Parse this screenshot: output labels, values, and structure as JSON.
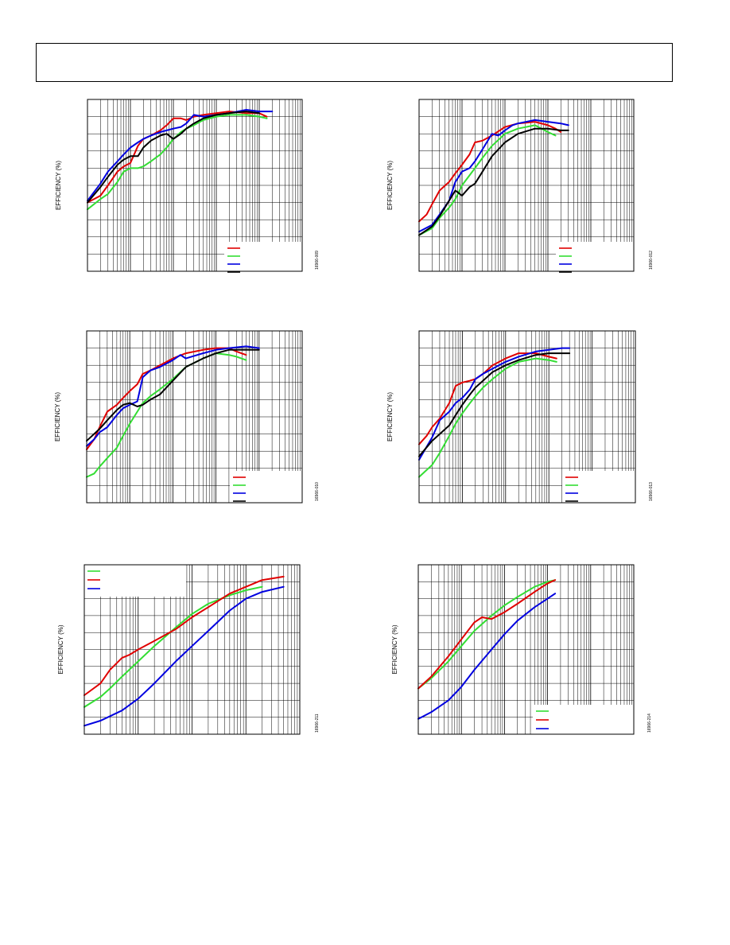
{
  "page": {
    "header_text": ""
  },
  "chart_data": [
    {
      "id": "chart-1",
      "type": "line",
      "ylabel": "EFFICIENCY (%)",
      "figure_id": "16966-009",
      "xscale": "log",
      "xrange": [
        0.0001,
        10
      ],
      "yrange": [
        0,
        100
      ],
      "grid": true,
      "legend_position": "bottom-right",
      "series": [
        {
          "color": "#e00000",
          "x": [
            0.0001,
            0.0002,
            0.0003,
            0.0005,
            0.0007,
            0.001,
            0.0015,
            0.002,
            0.003,
            0.005,
            0.007,
            0.01,
            0.015,
            0.02,
            0.03,
            0.05,
            0.1,
            0.2,
            0.5,
            1,
            1.5
          ],
          "y": [
            40,
            44,
            50,
            58,
            61,
            63,
            73,
            77,
            79,
            82,
            85,
            89,
            89,
            88,
            90,
            91,
            92,
            93,
            92,
            92,
            90
          ]
        },
        {
          "color": "#33dd33",
          "x": [
            0.0001,
            0.0002,
            0.0003,
            0.0005,
            0.0007,
            0.001,
            0.0015,
            0.002,
            0.003,
            0.005,
            0.007,
            0.01,
            0.015,
            0.02,
            0.03,
            0.05,
            0.1,
            0.2,
            0.5,
            1,
            1.5
          ],
          "y": [
            36,
            42,
            45,
            52,
            58,
            60,
            60,
            61,
            64,
            68,
            72,
            77,
            81,
            83,
            85,
            88,
            90,
            91,
            91,
            90,
            89
          ]
        },
        {
          "color": "#0000e0",
          "x": [
            0.0001,
            0.0002,
            0.0003,
            0.0005,
            0.0007,
            0.001,
            0.0015,
            0.002,
            0.003,
            0.005,
            0.007,
            0.01,
            0.015,
            0.02,
            0.03,
            0.05,
            0.1,
            0.2,
            0.5,
            1,
            2
          ],
          "y": [
            41,
            51,
            58,
            64,
            68,
            72,
            75,
            77,
            79,
            81,
            82,
            83,
            84,
            86,
            91,
            90,
            91,
            92,
            94,
            93,
            93
          ]
        },
        {
          "color": "#000000",
          "x": [
            0.0001,
            0.0002,
            0.0003,
            0.0005,
            0.0007,
            0.001,
            0.0015,
            0.002,
            0.003,
            0.005,
            0.007,
            0.01,
            0.015,
            0.02,
            0.03,
            0.05,
            0.1,
            0.2,
            0.5,
            1
          ],
          "y": [
            40,
            49,
            55,
            62,
            65,
            67,
            67,
            72,
            76,
            79,
            80,
            77,
            80,
            83,
            86,
            89,
            91,
            92,
            93,
            92
          ]
        }
      ]
    },
    {
      "id": "chart-2",
      "type": "line",
      "ylabel": "EFFICIENCY (%)",
      "figure_id": "16966-012",
      "xscale": "log",
      "xrange": [
        0.0001,
        10
      ],
      "yrange": [
        0,
        100
      ],
      "grid": true,
      "legend_position": "bottom-right",
      "series": [
        {
          "color": "#e00000",
          "x": [
            0.0001,
            0.00015,
            0.0002,
            0.0003,
            0.0005,
            0.0007,
            0.001,
            0.0015,
            0.002,
            0.003,
            0.005,
            0.01,
            0.02,
            0.05,
            0.1,
            0.15,
            0.2
          ],
          "y": [
            29,
            33,
            39,
            47,
            52,
            57,
            62,
            68,
            75,
            76,
            79,
            84,
            86,
            87,
            85,
            83,
            81
          ]
        },
        {
          "color": "#33dd33",
          "x": [
            0.0001,
            0.0002,
            0.0003,
            0.0005,
            0.0007,
            0.001,
            0.002,
            0.003,
            0.005,
            0.01,
            0.02,
            0.05,
            0.1,
            0.15
          ],
          "y": [
            21,
            25,
            31,
            37,
            42,
            50,
            60,
            66,
            73,
            80,
            83,
            85,
            81,
            79
          ]
        },
        {
          "color": "#0000e0",
          "x": [
            0.0001,
            0.0002,
            0.0003,
            0.0005,
            0.0007,
            0.001,
            0.0015,
            0.002,
            0.003,
            0.005,
            0.007,
            0.01,
            0.015,
            0.02,
            0.05,
            0.1,
            0.2,
            0.3
          ],
          "y": [
            23,
            27,
            33,
            41,
            52,
            58,
            60,
            64,
            71,
            80,
            79,
            82,
            85,
            86,
            88,
            87,
            86,
            85
          ]
        },
        {
          "color": "#000000",
          "x": [
            0.0001,
            0.0002,
            0.0003,
            0.0005,
            0.0007,
            0.001,
            0.0015,
            0.002,
            0.003,
            0.005,
            0.01,
            0.02,
            0.05,
            0.1,
            0.2,
            0.3
          ],
          "y": [
            21,
            26,
            32,
            41,
            47,
            44,
            49,
            51,
            58,
            67,
            75,
            80,
            83,
            83,
            82,
            82
          ]
        }
      ]
    },
    {
      "id": "chart-3",
      "type": "line",
      "ylabel": "EFFICIENCY (%)",
      "figure_id": "16966-010",
      "xscale": "log",
      "xrange": [
        0.0001,
        10
      ],
      "yrange": [
        0,
        100
      ],
      "grid": true,
      "legend_position": "bottom-right",
      "series": [
        {
          "color": "#e00000",
          "x": [
            0.0001,
            0.00015,
            0.0002,
            0.0003,
            0.0005,
            0.0007,
            0.001,
            0.0015,
            0.002,
            0.003,
            0.005,
            0.01,
            0.02,
            0.05,
            0.1,
            0.2,
            0.3,
            0.5
          ],
          "y": [
            31,
            37,
            44,
            53,
            57,
            61,
            65,
            69,
            75,
            77,
            80,
            84,
            87,
            89,
            90,
            90,
            88,
            86
          ]
        },
        {
          "color": "#33dd33",
          "x": [
            0.0001,
            0.00015,
            0.0002,
            0.0003,
            0.0005,
            0.0007,
            0.001,
            0.0015,
            0.002,
            0.003,
            0.005,
            0.01,
            0.02,
            0.05,
            0.1,
            0.2,
            0.3,
            0.5
          ],
          "y": [
            15,
            17,
            21,
            26,
            32,
            39,
            46,
            53,
            58,
            62,
            66,
            72,
            79,
            84,
            87,
            86,
            85,
            83
          ]
        },
        {
          "color": "#0000e0",
          "x": [
            0.0001,
            0.00015,
            0.0002,
            0.0003,
            0.0005,
            0.0007,
            0.001,
            0.0015,
            0.002,
            0.003,
            0.005,
            0.01,
            0.015,
            0.02,
            0.05,
            0.1,
            0.2,
            0.5,
            1
          ],
          "y": [
            33,
            37,
            41,
            44,
            51,
            55,
            57,
            59,
            73,
            77,
            79,
            83,
            86,
            84,
            87,
            89,
            90,
            91,
            90
          ]
        },
        {
          "color": "#000000",
          "x": [
            0.0001,
            0.0002,
            0.0003,
            0.0005,
            0.0007,
            0.001,
            0.0015,
            0.002,
            0.003,
            0.005,
            0.01,
            0.02,
            0.05,
            0.1,
            0.2,
            0.5,
            1
          ],
          "y": [
            36,
            43,
            48,
            54,
            57,
            58,
            56,
            57,
            60,
            63,
            71,
            79,
            84,
            87,
            89,
            89,
            89
          ]
        }
      ]
    },
    {
      "id": "chart-4",
      "type": "line",
      "ylabel": "EFFICIENCY (%)",
      "figure_id": "16966-013",
      "xscale": "log",
      "xrange": [
        0.0001,
        10
      ],
      "yrange": [
        0,
        100
      ],
      "grid": true,
      "legend_position": "bottom-right",
      "series": [
        {
          "color": "#e00000",
          "x": [
            0.0001,
            0.00015,
            0.0002,
            0.0003,
            0.0005,
            0.0007,
            0.001,
            0.0015,
            0.002,
            0.003,
            0.005,
            0.01,
            0.02,
            0.05,
            0.1,
            0.15
          ],
          "y": [
            34,
            39,
            44,
            49,
            58,
            68,
            70,
            71,
            72,
            75,
            80,
            84,
            87,
            87,
            85,
            84
          ]
        },
        {
          "color": "#33dd33",
          "x": [
            0.0001,
            0.0002,
            0.0003,
            0.0005,
            0.0007,
            0.001,
            0.0015,
            0.002,
            0.003,
            0.005,
            0.01,
            0.02,
            0.05,
            0.1,
            0.15
          ],
          "y": [
            15,
            22,
            29,
            39,
            46,
            52,
            58,
            62,
            67,
            72,
            78,
            82,
            84,
            83,
            82
          ]
        },
        {
          "color": "#0000e0",
          "x": [
            0.0001,
            0.0002,
            0.0003,
            0.0005,
            0.0007,
            0.001,
            0.0015,
            0.002,
            0.003,
            0.005,
            0.01,
            0.02,
            0.05,
            0.1,
            0.2,
            0.3
          ],
          "y": [
            25,
            38,
            48,
            53,
            58,
            61,
            66,
            72,
            75,
            78,
            82,
            85,
            88,
            89,
            90,
            90
          ]
        },
        {
          "color": "#000000",
          "x": [
            0.0001,
            0.0002,
            0.0003,
            0.0005,
            0.0007,
            0.001,
            0.0015,
            0.002,
            0.003,
            0.005,
            0.01,
            0.02,
            0.05,
            0.1,
            0.2,
            0.3
          ],
          "y": [
            27,
            36,
            40,
            45,
            51,
            57,
            63,
            67,
            71,
            76,
            80,
            83,
            86,
            87,
            87,
            87
          ]
        }
      ]
    },
    {
      "id": "chart-5",
      "type": "line",
      "ylabel": "EFFICIENCY (%)",
      "figure_id": "16966-211",
      "xscale": "log",
      "xrange": [
        0.0001,
        1
      ],
      "yrange": [
        0,
        100
      ],
      "grid": true,
      "legend_position": "top-left",
      "series": [
        {
          "color": "#33dd33",
          "x": [
            0.0001,
            0.0002,
            0.0003,
            0.0005,
            0.001,
            0.002,
            0.005,
            0.01,
            0.02,
            0.05,
            0.1,
            0.2
          ],
          "y": [
            16,
            22,
            27,
            34,
            43,
            52,
            63,
            71,
            77,
            82,
            85,
            87
          ]
        },
        {
          "color": "#e00000",
          "x": [
            0.0001,
            0.0002,
            0.0003,
            0.0005,
            0.0007,
            0.001,
            0.002,
            0.005,
            0.01,
            0.02,
            0.05,
            0.1,
            0.2,
            0.5
          ],
          "y": [
            23,
            30,
            38,
            45,
            47,
            50,
            55,
            62,
            69,
            75,
            83,
            87,
            91,
            93
          ]
        },
        {
          "color": "#0000e0",
          "x": [
            0.0001,
            0.0002,
            0.0005,
            0.001,
            0.002,
            0.005,
            0.01,
            0.02,
            0.05,
            0.1,
            0.2,
            0.5
          ],
          "y": [
            5,
            8,
            14,
            21,
            30,
            43,
            52,
            61,
            73,
            80,
            84,
            87
          ]
        }
      ]
    },
    {
      "id": "chart-6",
      "type": "line",
      "ylabel": "EFFICIENCY (%)",
      "figure_id": "16966-214",
      "xscale": "log",
      "xrange": [
        0.0001,
        10
      ],
      "yrange": [
        0,
        100
      ],
      "grid": true,
      "legend_position": "bottom-right",
      "series": [
        {
          "color": "#33dd33",
          "x": [
            0.0001,
            0.0002,
            0.0005,
            0.001,
            0.002,
            0.005,
            0.01,
            0.02,
            0.05,
            0.1,
            0.15
          ],
          "y": [
            27,
            33,
            43,
            52,
            61,
            70,
            76,
            81,
            87,
            90,
            91
          ]
        },
        {
          "color": "#e00000",
          "x": [
            0.0001,
            0.0002,
            0.0005,
            0.001,
            0.002,
            0.003,
            0.005,
            0.01,
            0.02,
            0.05,
            0.1,
            0.15
          ],
          "y": [
            27,
            34,
            46,
            56,
            66,
            69,
            68,
            72,
            77,
            84,
            89,
            91
          ]
        },
        {
          "color": "#0000e0",
          "x": [
            0.0001,
            0.0002,
            0.0005,
            0.001,
            0.002,
            0.005,
            0.01,
            0.02,
            0.05,
            0.1,
            0.15
          ],
          "y": [
            9,
            13,
            20,
            28,
            38,
            50,
            59,
            67,
            75,
            80,
            83
          ]
        }
      ]
    }
  ]
}
